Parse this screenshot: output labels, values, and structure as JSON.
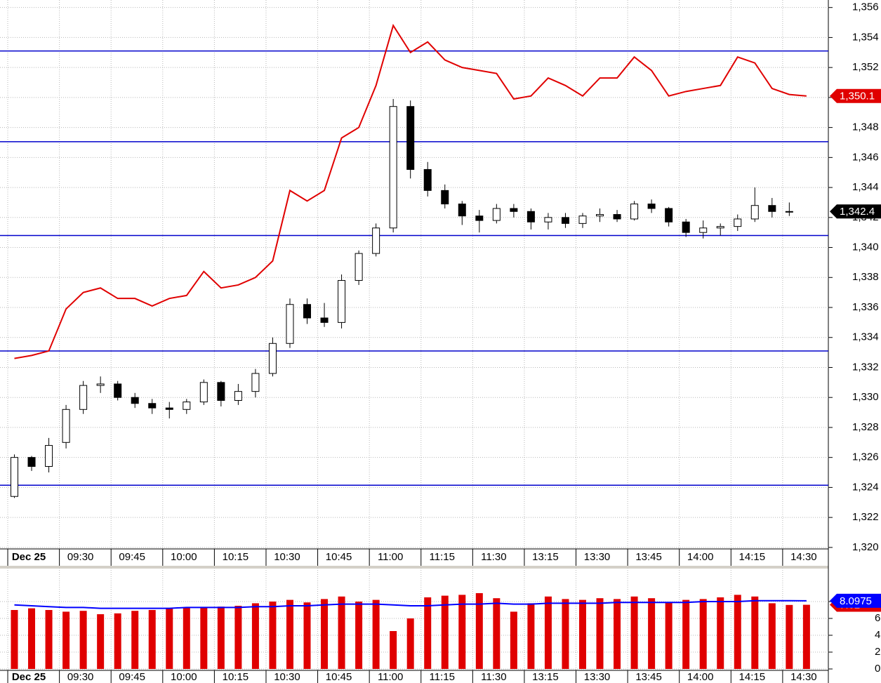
{
  "chart_data": [
    {
      "type": "candlestick",
      "categories": [
        null,
        "Dec 25",
        null,
        null,
        "09:30",
        null,
        null,
        "09:45",
        null,
        null,
        "10:00",
        null,
        null,
        "10:15",
        null,
        null,
        "10:30",
        null,
        null,
        "10:45",
        null,
        null,
        "11:00",
        null,
        null,
        "11:15",
        null,
        null,
        "11:30",
        null,
        null,
        "13:15",
        null,
        null,
        "13:30",
        null,
        null,
        "13:45",
        null,
        null,
        "14:00",
        null,
        null,
        "14:15",
        null,
        null,
        "14:30"
      ],
      "series": [
        {
          "type": "candlestick",
          "up_color": "#ffffff",
          "down_color": "#000000",
          "open": [
            1323.4,
            1326.0,
            1325.4,
            1327.0,
            1329.2,
            1330.8,
            1330.9,
            1330.0,
            1329.6,
            1329.3,
            1329.2,
            1329.7,
            1331.0,
            1329.8,
            1330.4,
            1331.6,
            1333.6,
            1336.2,
            1335.3,
            1335.0,
            1337.8,
            1339.6,
            1341.3,
            1349.4,
            1345.2,
            1343.8,
            1342.9,
            1342.1,
            1341.8,
            1342.6,
            1342.4,
            1341.7,
            1342.0,
            1341.6,
            1342.1,
            1342.2,
            1341.9,
            1342.9,
            1342.6,
            1341.7,
            1341.0,
            1341.3,
            1341.4,
            1341.9,
            1342.8,
            1342.4,
            null
          ],
          "high": [
            1326.2,
            1326.1,
            1327.3,
            1329.5,
            1331.1,
            1331.4,
            1331.1,
            1330.3,
            1329.9,
            1329.7,
            1329.9,
            1331.2,
            1331.1,
            1330.9,
            1331.9,
            1334.0,
            1336.6,
            1336.6,
            1336.3,
            1338.2,
            1339.8,
            1341.6,
            1349.9,
            1349.8,
            1345.7,
            1344.2,
            1343.1,
            1342.5,
            1342.9,
            1342.9,
            1342.6,
            1342.3,
            1342.3,
            1342.3,
            1342.6,
            1342.5,
            1343.1,
            1343.2,
            1342.7,
            1341.9,
            1341.8,
            1341.6,
            1342.2,
            1344.0,
            1343.3,
            1343.0,
            null
          ],
          "low": [
            1323.3,
            1325.1,
            1325.0,
            1326.6,
            1328.9,
            1330.3,
            1329.8,
            1329.3,
            1328.9,
            1328.6,
            1328.9,
            1329.5,
            1329.4,
            1329.5,
            1330.0,
            1331.4,
            1333.3,
            1334.9,
            1334.7,
            1334.6,
            1337.5,
            1339.4,
            1341.0,
            1344.6,
            1343.4,
            1342.6,
            1341.5,
            1341.0,
            1341.6,
            1342.0,
            1341.2,
            1341.2,
            1341.3,
            1341.3,
            1341.7,
            1341.7,
            1341.8,
            1342.3,
            1341.4,
            1340.7,
            1340.6,
            1340.8,
            1341.1,
            1341.7,
            1342.0,
            1342.1,
            null
          ],
          "close": [
            1326.0,
            1325.4,
            1326.8,
            1329.2,
            1330.8,
            1330.9,
            1330.0,
            1329.6,
            1329.3,
            1329.2,
            1329.7,
            1331.0,
            1329.8,
            1330.4,
            1331.6,
            1333.6,
            1336.2,
            1335.3,
            1335.0,
            1337.8,
            1339.6,
            1341.3,
            1349.4,
            1345.2,
            1343.8,
            1342.9,
            1342.1,
            1341.8,
            1342.6,
            1342.4,
            1341.7,
            1342.0,
            1341.6,
            1342.1,
            1342.2,
            1341.9,
            1342.9,
            1342.6,
            1341.7,
            1341.0,
            1341.3,
            1341.4,
            1341.9,
            1342.8,
            1342.4,
            1342.4,
            null
          ],
          "value_labels": [
            null,
            null,
            null,
            null,
            null,
            null,
            null,
            null,
            null,
            null,
            null,
            null,
            null,
            null,
            null,
            null,
            null,
            null,
            null,
            null,
            null,
            null,
            null,
            null,
            null,
            null,
            null,
            null,
            null,
            null,
            null,
            null,
            null,
            null,
            null,
            null,
            null,
            null,
            null,
            null,
            null,
            null,
            null,
            null,
            null,
            "1,342.4",
            null
          ]
        },
        {
          "type": "line",
          "color": "#e00000",
          "values": [
            1332.6,
            1332.8,
            1333.1,
            1335.9,
            1337.0,
            1337.3,
            1336.6,
            1336.6,
            1336.1,
            1336.6,
            1336.8,
            1338.4,
            1337.3,
            1337.5,
            1338.0,
            1339.1,
            1343.8,
            1343.1,
            1343.8,
            1347.3,
            1348.0,
            1350.8,
            1354.8,
            1353.0,
            1353.7,
            1352.5,
            1352.0,
            1351.8,
            1351.6,
            1349.9,
            1350.1,
            1351.3,
            1350.8,
            1350.1,
            1351.3,
            1351.3,
            1352.7,
            1351.8,
            1350.1,
            1350.4,
            1350.6,
            1350.8,
            1352.7,
            1352.3,
            1350.6,
            1350.2,
            1350.1
          ],
          "value_labels": [
            null,
            null,
            null,
            null,
            null,
            null,
            null,
            null,
            null,
            null,
            null,
            null,
            null,
            null,
            null,
            null,
            null,
            null,
            null,
            null,
            null,
            null,
            null,
            null,
            null,
            null,
            null,
            null,
            null,
            null,
            null,
            null,
            null,
            null,
            null,
            null,
            null,
            null,
            null,
            null,
            null,
            null,
            null,
            null,
            null,
            null,
            "1,350.1"
          ]
        }
      ],
      "levels": {
        "color": "#0000cc",
        "values": [
          1353.1,
          1347.05,
          1340.8,
          1333.1,
          1324.15
        ]
      },
      "ylim": [
        1319.9,
        1356.5
      ],
      "yticks": [
        {
          "value": 1320,
          "label": "1,320"
        },
        {
          "value": 1322,
          "label": "1,322"
        },
        {
          "value": 1324,
          "label": "1,324"
        },
        {
          "value": 1326,
          "label": "1,326"
        },
        {
          "value": 1328,
          "label": "1,328"
        },
        {
          "value": 1330,
          "label": "1,330"
        },
        {
          "value": 1332,
          "label": "1,332"
        },
        {
          "value": 1334,
          "label": "1,334"
        },
        {
          "value": 1336,
          "label": "1,336"
        },
        {
          "value": 1338,
          "label": "1,338"
        },
        {
          "value": 1340,
          "label": "1,340"
        },
        {
          "value": 1342,
          "label": "1,342"
        },
        {
          "value": 1344,
          "label": "1,344"
        },
        {
          "value": 1346,
          "label": "1,346"
        },
        {
          "value": 1348,
          "label": "1,348"
        },
        {
          "value": 1350,
          "label": "1,350"
        },
        {
          "value": 1352,
          "label": "1,352"
        },
        {
          "value": 1354,
          "label": "1,354"
        },
        {
          "value": 1356,
          "label": "1,356"
        }
      ],
      "grid": true
    },
    {
      "type": "bar",
      "categories": [
        null,
        "Dec 25",
        null,
        null,
        "09:30",
        null,
        null,
        "09:45",
        null,
        null,
        "10:00",
        null,
        null,
        "10:15",
        null,
        null,
        "10:30",
        null,
        null,
        "10:45",
        null,
        null,
        "11:00",
        null,
        null,
        "11:15",
        null,
        null,
        "11:30",
        null,
        null,
        "13:15",
        null,
        null,
        "13:30",
        null,
        null,
        "13:45",
        null,
        null,
        "14:00",
        null,
        null,
        "14:15",
        null,
        null,
        "14:30"
      ],
      "series": [
        {
          "type": "bar",
          "color": "#e00000",
          "values": [
            7.0,
            7.2,
            7.0,
            6.8,
            6.9,
            6.5,
            6.6,
            6.9,
            7.0,
            7.2,
            7.3,
            7.3,
            7.4,
            7.5,
            7.8,
            8.0,
            8.2,
            7.9,
            8.3,
            8.6,
            8.0,
            8.2,
            4.5,
            6.0,
            8.5,
            8.7,
            8.8,
            9.0,
            8.4,
            6.8,
            7.8,
            8.6,
            8.3,
            8.2,
            8.4,
            8.3,
            8.6,
            8.4,
            7.9,
            8.2,
            8.3,
            8.5,
            8.8,
            8.6,
            7.8,
            7.6,
            7.62
          ]
        },
        {
          "type": "line",
          "color": "#0000ff",
          "values": [
            7.6,
            7.5,
            7.4,
            7.3,
            7.3,
            7.2,
            7.2,
            7.2,
            7.2,
            7.2,
            7.3,
            7.3,
            7.3,
            7.3,
            7.4,
            7.4,
            7.5,
            7.5,
            7.6,
            7.7,
            7.7,
            7.7,
            7.6,
            7.5,
            7.5,
            7.6,
            7.7,
            7.7,
            7.8,
            7.7,
            7.7,
            7.8,
            7.8,
            7.8,
            7.8,
            7.9,
            7.9,
            7.9,
            7.9,
            7.9,
            8.0,
            8.0,
            8.0,
            8.1,
            8.1,
            8.1,
            8.0975
          ]
        }
      ],
      "ylim": [
        0,
        12
      ],
      "yticks": [
        0,
        2,
        4,
        6,
        8
      ],
      "grid": true
    }
  ]
}
